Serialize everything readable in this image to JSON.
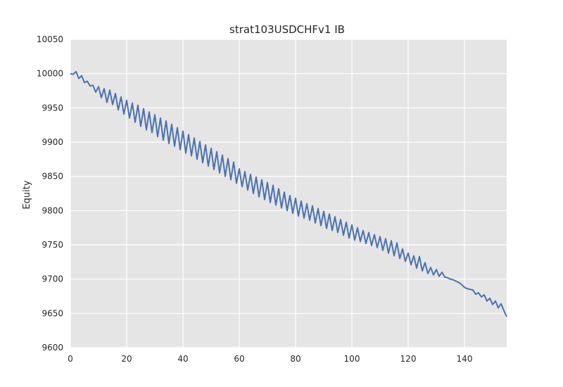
{
  "chart_data": {
    "type": "line",
    "title": "strat103USDCHFv1 IB",
    "xlabel": "",
    "ylabel": "Equity",
    "xlim": [
      0,
      155
    ],
    "ylim": [
      9600,
      10050
    ],
    "xticks": [
      0,
      20,
      40,
      60,
      80,
      100,
      120,
      140
    ],
    "yticks": [
      9600,
      9650,
      9700,
      9750,
      9800,
      9850,
      9900,
      9950,
      10000,
      10050
    ],
    "grid": true,
    "colors": {
      "background": "#e5e5e5",
      "grid": "#ffffff",
      "line": "#4c72b0"
    },
    "series": [
      {
        "x": [
          0,
          1,
          2,
          3,
          4,
          5,
          6,
          7,
          8,
          9,
          10,
          11,
          12,
          13,
          14,
          15,
          16,
          17,
          18,
          19,
          20,
          21,
          22,
          23,
          24,
          25,
          26,
          27,
          28,
          29,
          30,
          31,
          32,
          33,
          34,
          35,
          36,
          37,
          38,
          39,
          40,
          41,
          42,
          43,
          44,
          45,
          46,
          47,
          48,
          49,
          50,
          51,
          52,
          53,
          54,
          55,
          56,
          57,
          58,
          59,
          60,
          61,
          62,
          63,
          64,
          65,
          66,
          67,
          68,
          69,
          70,
          71,
          72,
          73,
          74,
          75,
          76,
          77,
          78,
          79,
          80,
          81,
          82,
          83,
          84,
          85,
          86,
          87,
          88,
          89,
          90,
          91,
          92,
          93,
          94,
          95,
          96,
          97,
          98,
          99,
          100,
          101,
          102,
          103,
          104,
          105,
          106,
          107,
          108,
          109,
          110,
          111,
          112,
          113,
          114,
          115,
          116,
          117,
          118,
          119,
          120,
          121,
          122,
          123,
          124,
          125,
          126,
          127,
          128,
          129,
          130,
          131,
          132,
          133,
          134,
          135,
          136,
          137,
          138,
          139,
          140,
          141,
          142,
          143,
          144,
          145,
          146,
          147,
          148,
          149,
          150,
          151,
          152,
          153,
          154,
          155
        ],
        "values": [
          10000,
          9999,
          10003,
          9993,
          9997,
          9987,
          9989,
          9982,
          9983,
          9973,
          9981,
          9965,
          9978,
          9958,
          9976,
          9955,
          9971,
          9947,
          9966,
          9941,
          9961,
          9935,
          9957,
          9929,
          9954,
          9923,
          9949,
          9918,
          9944,
          9914,
          9940,
          9908,
          9935,
          9903,
          9931,
          9898,
          9926,
          9894,
          9921,
          9889,
          9916,
          9884,
          9911,
          9880,
          9906,
          9875,
          9901,
          9870,
          9896,
          9865,
          9891,
          9860,
          9886,
          9855,
          9881,
          9850,
          9876,
          9845,
          9871,
          9840,
          9861,
          9835,
          9857,
          9830,
          9853,
          9825,
          9849,
          9820,
          9845,
          9816,
          9841,
          9812,
          9837,
          9808,
          9832,
          9804,
          9827,
          9800,
          9822,
          9796,
          9818,
          9792,
          9814,
          9789,
          9810,
          9786,
          9807,
          9782,
          9803,
          9778,
          9799,
          9774,
          9795,
          9771,
          9791,
          9768,
          9787,
          9764,
          9783,
          9760,
          9779,
          9757,
          9775,
          9755,
          9771,
          9752,
          9768,
          9749,
          9765,
          9746,
          9762,
          9742,
          9759,
          9738,
          9756,
          9734,
          9753,
          9730,
          9744,
          9726,
          9738,
          9721,
          9734,
          9716,
          9733,
          9712,
          9724,
          9708,
          9717,
          9706,
          9714,
          9704,
          9710,
          9703,
          9702,
          9700,
          9699,
          9697,
          9695,
          9692,
          9688,
          9686,
          9685,
          9684,
          9678,
          9680,
          9674,
          9677,
          9668,
          9672,
          9663,
          9668,
          9658,
          9664,
          9654,
          9645
        ]
      }
    ]
  }
}
